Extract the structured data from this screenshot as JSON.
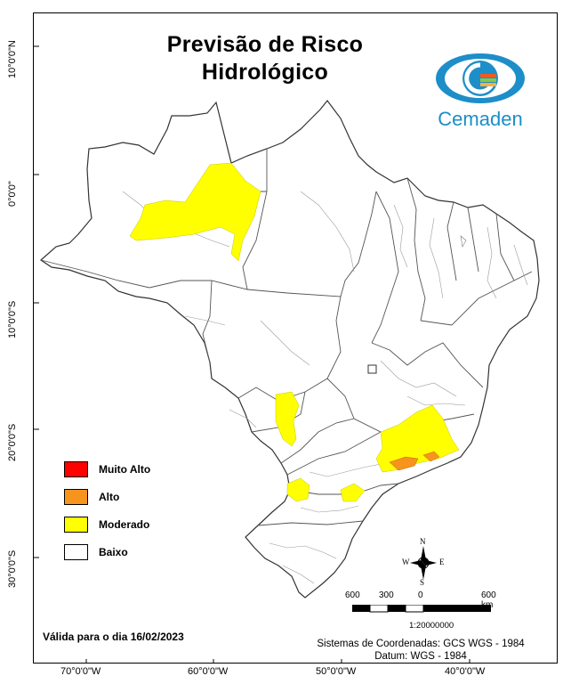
{
  "title_line1": "Previsão de Risco",
  "title_line2": "Hidrológico",
  "logo": {
    "text": "Cemaden",
    "icon": "cemaden-eye-logo"
  },
  "legend": [
    {
      "label": "Muito Alto",
      "color": "#ff0000"
    },
    {
      "label": "Alto",
      "color": "#f7941d"
    },
    {
      "label": "Moderado",
      "color": "#ffff00"
    },
    {
      "label": "Baixo",
      "color": "#ffffff"
    }
  ],
  "validity": "Válida para o dia 16/02/2023",
  "crs_line1": "Sistemas de Coordenadas: GCS WGS - 1984",
  "crs_line2": "Datum: WGS - 1984",
  "scale": {
    "labels": [
      "600",
      "300",
      "0",
      "600 km"
    ],
    "ratio": "1:20000000"
  },
  "north_arrow": {
    "n": "N",
    "s": "S",
    "e": "E",
    "w": "W"
  },
  "lat_labels": [
    "10°0'0\"N",
    "0°0'0\"",
    "10°0'0\"S",
    "20°0'0\"S",
    "30°0'0\"S"
  ],
  "lon_labels": [
    "70°0'0\"W",
    "60°0'0\"W",
    "50°0'0\"W",
    "40°0'0\"W"
  ],
  "colors": {
    "border": "#000000",
    "state_line": "#555555",
    "municipality_line": "#9a9a9a"
  }
}
